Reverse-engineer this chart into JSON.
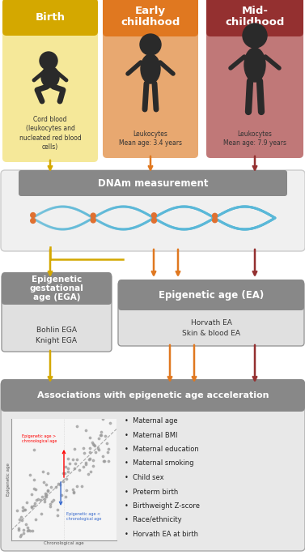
{
  "fig_width": 3.77,
  "fig_height": 6.85,
  "dpi": 100,
  "bg_color": "#ffffff",
  "birth_title_color": "#d4a800",
  "birth_bg": "#f5e899",
  "early_title_color": "#e07820",
  "early_bg": "#e8a870",
  "mid_title_color": "#943030",
  "mid_bg": "#c07878",
  "arrow_birth": "#d4a800",
  "arrow_early": "#e07820",
  "arrow_mid": "#943030",
  "silhouette_color": "#2a2a2a",
  "dnam_box_fill": "#f0f0f0",
  "dnam_box_edge": "#cccccc",
  "dnam_header_fill": "#888888",
  "ega_box_fill": "#e0e0e0",
  "ega_box_edge": "#999999",
  "ega_header_fill": "#888888",
  "ea_box_fill": "#e0e0e0",
  "ea_box_edge": "#999999",
  "ea_header_fill": "#888888",
  "assoc_box_fill": "#e8e8e8",
  "assoc_box_edge": "#aaaaaa",
  "assoc_header_fill": "#888888",
  "birth_title": "Birth",
  "early_title": "Early\nchildhood",
  "mid_title": "Mid-\nchildhood",
  "birth_text": "Cord blood\n(leukocytes and\nnucleated red blood\ncells)",
  "early_text": "Leukocytes\nMean age: 3.4 years",
  "mid_text": "Leukocytes\nMean age: 7.9 years",
  "dnam_text": "DNAm measurement",
  "ega_title": "Epigenetic\ngestational\nage (EGA)",
  "ega_sub": "Bohlin EGA\nKnight EGA",
  "ea_title": "Epigenetic age (EA)",
  "ea_sub": "Horvath EA\nSkin & blood EA",
  "assoc_title": "Associations with epigenetic age acceleration",
  "assoc_bullets": [
    "Maternal age",
    "Maternal BMI",
    "Maternal education",
    "Maternal smoking",
    "Child sex",
    "Preterm birth",
    "Birthweight Z-score",
    "Race/ethnicity",
    "Horvath EA at birth"
  ],
  "scatter_xlabel": "Chronological age",
  "scatter_ylabel": "Epigenetic age",
  "scatter_label_above": "Epigenetic age >\nchronological age",
  "scatter_label_below": "Epigenetic age <\nchronological age",
  "dna_color": "#5ab8d8",
  "dna_node_color": "#e07030"
}
